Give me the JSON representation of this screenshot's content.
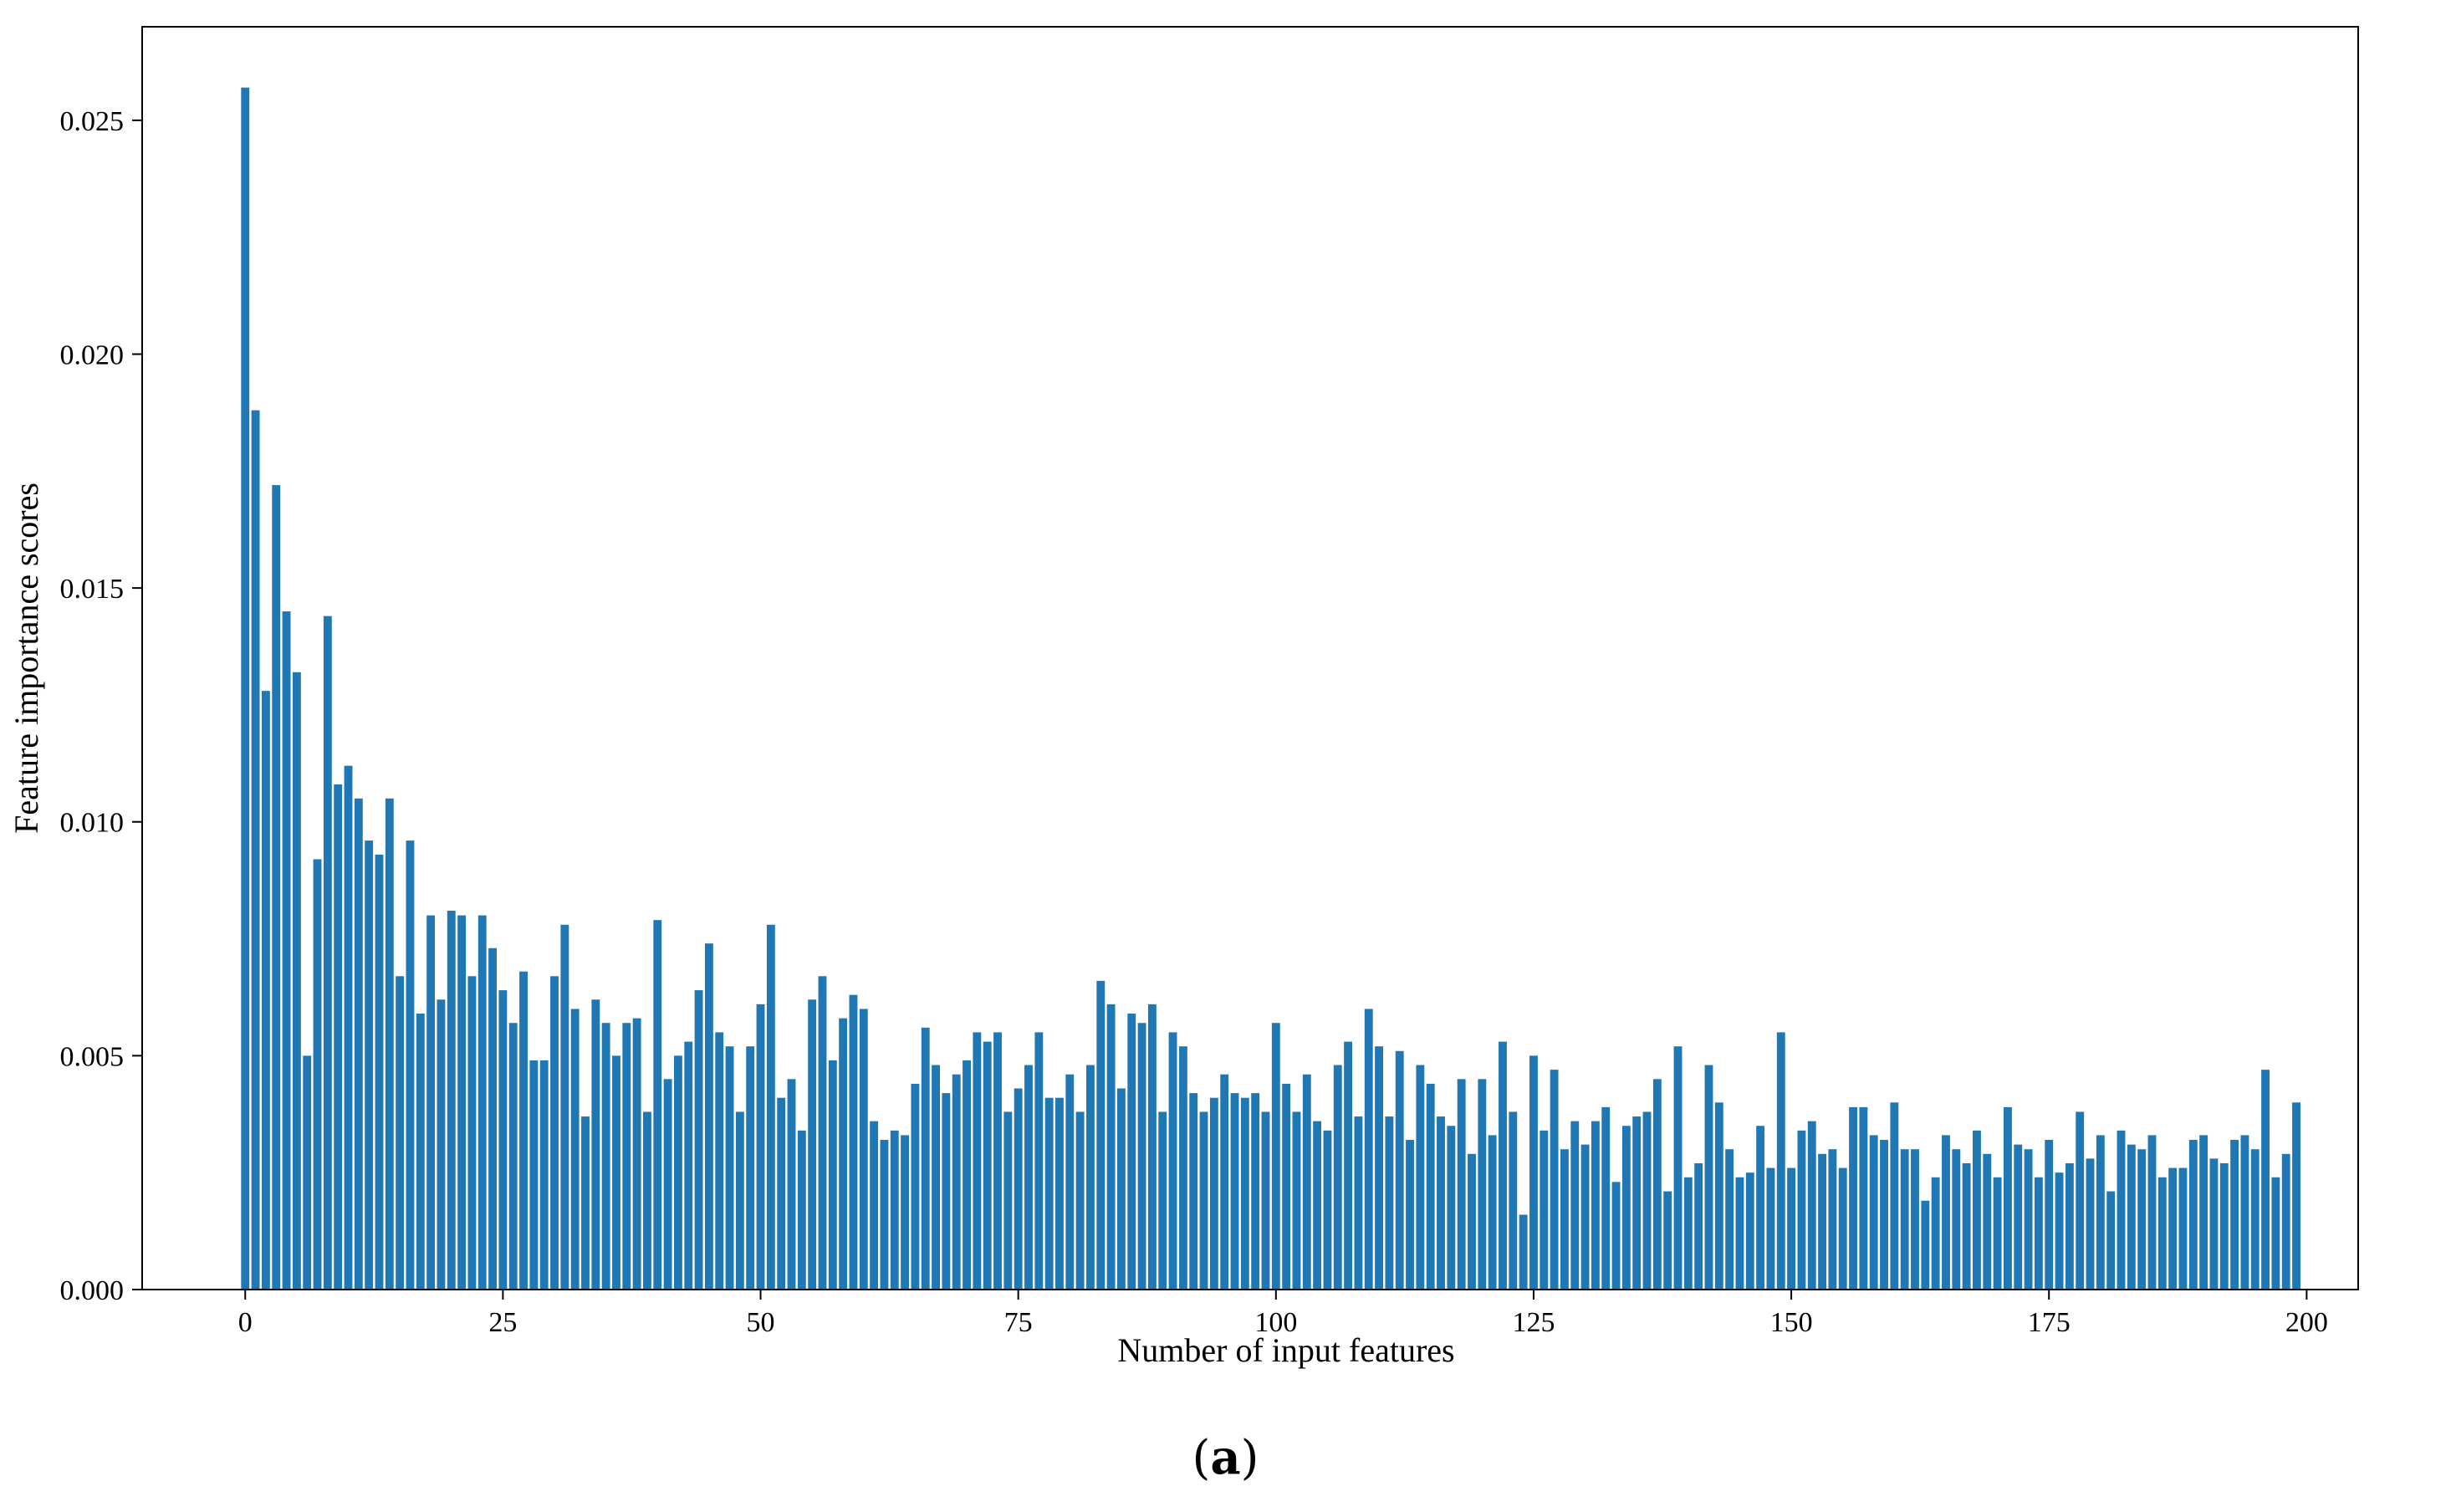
{
  "caption": {
    "open": "(",
    "letter": "a",
    "close": ")"
  },
  "colors": {
    "bar": "#1f77b4",
    "axis": "#000000",
    "background": "#ffffff"
  },
  "chart_data": {
    "type": "bar",
    "title": "",
    "xlabel": "Number of input features",
    "ylabel": "Feature importance scores",
    "xlim": [
      -10,
      205
    ],
    "ylim": [
      0,
      0.027
    ],
    "grid": false,
    "legend": "none",
    "xticks": [
      0,
      25,
      50,
      75,
      100,
      125,
      150,
      175,
      200
    ],
    "xtick_labels": [
      "0",
      "25",
      "50",
      "75",
      "100",
      "125",
      "150",
      "175",
      "200"
    ],
    "yticks": [
      0,
      0.005,
      0.01,
      0.015,
      0.02,
      0.025
    ],
    "ytick_labels": [
      "0.000",
      "0.005",
      "0.010",
      "0.015",
      "0.020",
      "0.025"
    ],
    "x": [
      0,
      1,
      2,
      3,
      4,
      5,
      6,
      7,
      8,
      9,
      10,
      11,
      12,
      13,
      14,
      15,
      16,
      17,
      18,
      19,
      20,
      21,
      22,
      23,
      24,
      25,
      26,
      27,
      28,
      29,
      30,
      31,
      32,
      33,
      34,
      35,
      36,
      37,
      38,
      39,
      40,
      41,
      42,
      43,
      44,
      45,
      46,
      47,
      48,
      49,
      50,
      51,
      52,
      53,
      54,
      55,
      56,
      57,
      58,
      59,
      60,
      61,
      62,
      63,
      64,
      65,
      66,
      67,
      68,
      69,
      70,
      71,
      72,
      73,
      74,
      75,
      76,
      77,
      78,
      79,
      80,
      81,
      82,
      83,
      84,
      85,
      86,
      87,
      88,
      89,
      90,
      91,
      92,
      93,
      94,
      95,
      96,
      97,
      98,
      99,
      100,
      101,
      102,
      103,
      104,
      105,
      106,
      107,
      108,
      109,
      110,
      111,
      112,
      113,
      114,
      115,
      116,
      117,
      118,
      119,
      120,
      121,
      122,
      123,
      124,
      125,
      126,
      127,
      128,
      129,
      130,
      131,
      132,
      133,
      134,
      135,
      136,
      137,
      138,
      139,
      140,
      141,
      142,
      143,
      144,
      145,
      146,
      147,
      148,
      149,
      150,
      151,
      152,
      153,
      154,
      155,
      156,
      157,
      158,
      159,
      160,
      161,
      162,
      163,
      164,
      165,
      166,
      167,
      168,
      169,
      170,
      171,
      172,
      173,
      174,
      175,
      176,
      177,
      178,
      179,
      180,
      181,
      182,
      183,
      184,
      185,
      186,
      187,
      188,
      189,
      190,
      191,
      192,
      193,
      194,
      195,
      196,
      197,
      198,
      199
    ],
    "values": [
      0.0257,
      0.0188,
      0.0128,
      0.0172,
      0.0145,
      0.0132,
      0.005,
      0.0092,
      0.0144,
      0.0108,
      0.0112,
      0.0105,
      0.0096,
      0.0093,
      0.0105,
      0.0067,
      0.0096,
      0.0059,
      0.008,
      0.0062,
      0.0081,
      0.008,
      0.0067,
      0.008,
      0.0073,
      0.0064,
      0.0057,
      0.0068,
      0.0049,
      0.0049,
      0.0067,
      0.0078,
      0.006,
      0.0037,
      0.0062,
      0.0057,
      0.005,
      0.0057,
      0.0058,
      0.0038,
      0.0079,
      0.0045,
      0.005,
      0.0053,
      0.0064,
      0.0074,
      0.0055,
      0.0052,
      0.0038,
      0.0052,
      0.0061,
      0.0078,
      0.0041,
      0.0045,
      0.0034,
      0.0062,
      0.0067,
      0.0049,
      0.0058,
      0.0063,
      0.006,
      0.0036,
      0.0032,
      0.0034,
      0.0033,
      0.0044,
      0.0056,
      0.0048,
      0.0042,
      0.0046,
      0.0049,
      0.0055,
      0.0053,
      0.0055,
      0.0038,
      0.0043,
      0.0048,
      0.0055,
      0.0041,
      0.0041,
      0.0046,
      0.0038,
      0.0048,
      0.0066,
      0.0061,
      0.0043,
      0.0059,
      0.0057,
      0.0061,
      0.0038,
      0.0055,
      0.0052,
      0.0042,
      0.0038,
      0.0041,
      0.0046,
      0.0042,
      0.0041,
      0.0042,
      0.0038,
      0.0057,
      0.0044,
      0.0038,
      0.0046,
      0.0036,
      0.0034,
      0.0048,
      0.0053,
      0.0037,
      0.006,
      0.0052,
      0.0037,
      0.0051,
      0.0032,
      0.0048,
      0.0044,
      0.0037,
      0.0035,
      0.0045,
      0.0029,
      0.0045,
      0.0033,
      0.0053,
      0.0038,
      0.0016,
      0.005,
      0.0034,
      0.0047,
      0.003,
      0.0036,
      0.0031,
      0.0036,
      0.0039,
      0.0023,
      0.0035,
      0.0037,
      0.0038,
      0.0045,
      0.0021,
      0.0052,
      0.0024,
      0.0027,
      0.0048,
      0.004,
      0.003,
      0.0024,
      0.0025,
      0.0035,
      0.0026,
      0.0055,
      0.0026,
      0.0034,
      0.0036,
      0.0029,
      0.003,
      0.0026,
      0.0039,
      0.0039,
      0.0033,
      0.0032,
      0.004,
      0.003,
      0.003,
      0.0019,
      0.0024,
      0.0033,
      0.003,
      0.0027,
      0.0034,
      0.0029,
      0.0024,
      0.0039,
      0.0031,
      0.003,
      0.0024,
      0.0032,
      0.0025,
      0.0027,
      0.0038,
      0.0028,
      0.0033,
      0.0021,
      0.0034,
      0.0031,
      0.003,
      0.0033,
      0.0024,
      0.0026,
      0.0026,
      0.0032,
      0.0033,
      0.0028,
      0.0027,
      0.0032,
      0.0033,
      0.003,
      0.0047,
      0.0024,
      0.0029,
      0.004
    ]
  }
}
